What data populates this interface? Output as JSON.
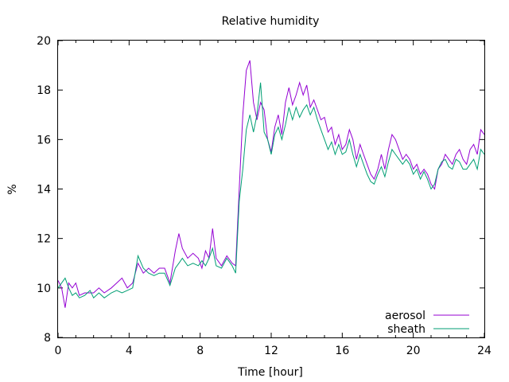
{
  "chart_data": {
    "type": "line",
    "title": "Relative humidity",
    "xlabel": "Time [hour]",
    "ylabel": "%",
    "xlim": [
      0,
      24
    ],
    "ylim": [
      8,
      20
    ],
    "xticks": [
      0,
      4,
      8,
      12,
      16,
      20,
      24
    ],
    "yticks": [
      8,
      10,
      12,
      14,
      16,
      18,
      20
    ],
    "grid": false,
    "legend_position": "bottom-right",
    "series": [
      {
        "name": "aerosol",
        "color": "#9400d3",
        "points": [
          [
            0,
            10.3
          ],
          [
            0.2,
            10.0
          ],
          [
            0.4,
            9.2
          ],
          [
            0.6,
            10.2
          ],
          [
            0.8,
            10.0
          ],
          [
            1.0,
            10.2
          ],
          [
            1.2,
            9.7
          ],
          [
            1.5,
            9.8
          ],
          [
            1.8,
            9.8
          ],
          [
            2.0,
            9.8
          ],
          [
            2.3,
            10.0
          ],
          [
            2.6,
            9.8
          ],
          [
            3.0,
            10.0
          ],
          [
            3.3,
            10.2
          ],
          [
            3.6,
            10.4
          ],
          [
            3.9,
            10.0
          ],
          [
            4.2,
            10.2
          ],
          [
            4.5,
            11.0
          ],
          [
            4.8,
            10.6
          ],
          [
            5.1,
            10.8
          ],
          [
            5.4,
            10.6
          ],
          [
            5.7,
            10.8
          ],
          [
            6.0,
            10.8
          ],
          [
            6.3,
            10.2
          ],
          [
            6.6,
            11.5
          ],
          [
            6.8,
            12.2
          ],
          [
            7.0,
            11.6
          ],
          [
            7.3,
            11.2
          ],
          [
            7.6,
            11.4
          ],
          [
            7.9,
            11.2
          ],
          [
            8.1,
            10.8
          ],
          [
            8.3,
            11.5
          ],
          [
            8.5,
            11.2
          ],
          [
            8.7,
            12.4
          ],
          [
            8.9,
            11.2
          ],
          [
            9.2,
            10.9
          ],
          [
            9.5,
            11.3
          ],
          [
            9.8,
            11.0
          ],
          [
            10.0,
            10.9
          ],
          [
            10.2,
            14.0
          ],
          [
            10.4,
            17.0
          ],
          [
            10.6,
            18.8
          ],
          [
            10.8,
            19.2
          ],
          [
            11.0,
            17.5
          ],
          [
            11.2,
            16.8
          ],
          [
            11.4,
            17.5
          ],
          [
            11.6,
            17.2
          ],
          [
            11.8,
            16.0
          ],
          [
            12.0,
            15.5
          ],
          [
            12.2,
            16.5
          ],
          [
            12.4,
            17.0
          ],
          [
            12.6,
            16.2
          ],
          [
            12.8,
            17.5
          ],
          [
            13.0,
            18.1
          ],
          [
            13.2,
            17.4
          ],
          [
            13.4,
            17.8
          ],
          [
            13.6,
            18.3
          ],
          [
            13.8,
            17.8
          ],
          [
            14.0,
            18.2
          ],
          [
            14.2,
            17.3
          ],
          [
            14.4,
            17.6
          ],
          [
            14.6,
            17.2
          ],
          [
            14.8,
            16.8
          ],
          [
            15.0,
            16.9
          ],
          [
            15.2,
            16.3
          ],
          [
            15.4,
            16.5
          ],
          [
            15.6,
            15.8
          ],
          [
            15.8,
            16.2
          ],
          [
            16.0,
            15.6
          ],
          [
            16.2,
            15.8
          ],
          [
            16.4,
            16.4
          ],
          [
            16.6,
            16.0
          ],
          [
            16.8,
            15.2
          ],
          [
            17.0,
            15.8
          ],
          [
            17.2,
            15.4
          ],
          [
            17.4,
            15.0
          ],
          [
            17.6,
            14.6
          ],
          [
            17.8,
            14.4
          ],
          [
            18.0,
            14.8
          ],
          [
            18.2,
            15.4
          ],
          [
            18.4,
            14.8
          ],
          [
            18.6,
            15.6
          ],
          [
            18.8,
            16.2
          ],
          [
            19.0,
            16.0
          ],
          [
            19.2,
            15.6
          ],
          [
            19.4,
            15.2
          ],
          [
            19.6,
            15.4
          ],
          [
            19.8,
            15.2
          ],
          [
            20.0,
            14.8
          ],
          [
            20.2,
            15.0
          ],
          [
            20.4,
            14.6
          ],
          [
            20.6,
            14.8
          ],
          [
            20.8,
            14.6
          ],
          [
            21.0,
            14.2
          ],
          [
            21.2,
            14.0
          ],
          [
            21.4,
            14.8
          ],
          [
            21.6,
            15.0
          ],
          [
            21.8,
            15.4
          ],
          [
            22.0,
            15.2
          ],
          [
            22.2,
            15.0
          ],
          [
            22.4,
            15.4
          ],
          [
            22.6,
            15.6
          ],
          [
            22.8,
            15.2
          ],
          [
            23.0,
            15.0
          ],
          [
            23.2,
            15.6
          ],
          [
            23.4,
            15.8
          ],
          [
            23.6,
            15.4
          ],
          [
            23.8,
            16.4
          ],
          [
            24.0,
            16.2
          ]
        ]
      },
      {
        "name": "sheath",
        "color": "#009e73",
        "points": [
          [
            0,
            10.0
          ],
          [
            0.2,
            10.2
          ],
          [
            0.4,
            10.4
          ],
          [
            0.6,
            10.0
          ],
          [
            0.8,
            9.7
          ],
          [
            1.0,
            9.8
          ],
          [
            1.2,
            9.6
          ],
          [
            1.5,
            9.7
          ],
          [
            1.8,
            9.9
          ],
          [
            2.0,
            9.6
          ],
          [
            2.3,
            9.8
          ],
          [
            2.6,
            9.6
          ],
          [
            3.0,
            9.8
          ],
          [
            3.3,
            9.9
          ],
          [
            3.6,
            9.8
          ],
          [
            3.9,
            9.9
          ],
          [
            4.2,
            10.0
          ],
          [
            4.5,
            11.3
          ],
          [
            4.8,
            10.8
          ],
          [
            5.1,
            10.6
          ],
          [
            5.4,
            10.5
          ],
          [
            5.7,
            10.6
          ],
          [
            6.0,
            10.6
          ],
          [
            6.3,
            10.1
          ],
          [
            6.6,
            10.8
          ],
          [
            6.8,
            11.0
          ],
          [
            7.0,
            11.2
          ],
          [
            7.3,
            10.9
          ],
          [
            7.6,
            11.0
          ],
          [
            7.9,
            10.9
          ],
          [
            8.1,
            11.1
          ],
          [
            8.3,
            10.9
          ],
          [
            8.5,
            11.2
          ],
          [
            8.7,
            11.6
          ],
          [
            8.9,
            10.9
          ],
          [
            9.2,
            10.8
          ],
          [
            9.5,
            11.2
          ],
          [
            9.8,
            10.9
          ],
          [
            10.0,
            10.6
          ],
          [
            10.2,
            13.5
          ],
          [
            10.4,
            14.8
          ],
          [
            10.6,
            16.4
          ],
          [
            10.8,
            17.0
          ],
          [
            11.0,
            16.3
          ],
          [
            11.2,
            17.0
          ],
          [
            11.4,
            18.3
          ],
          [
            11.6,
            16.3
          ],
          [
            11.8,
            16.0
          ],
          [
            12.0,
            15.4
          ],
          [
            12.2,
            16.2
          ],
          [
            12.4,
            16.5
          ],
          [
            12.6,
            16.0
          ],
          [
            12.8,
            16.6
          ],
          [
            13.0,
            17.3
          ],
          [
            13.2,
            16.8
          ],
          [
            13.4,
            17.3
          ],
          [
            13.6,
            16.9
          ],
          [
            13.8,
            17.2
          ],
          [
            14.0,
            17.4
          ],
          [
            14.2,
            17.0
          ],
          [
            14.4,
            17.3
          ],
          [
            14.6,
            16.8
          ],
          [
            14.8,
            16.4
          ],
          [
            15.0,
            16.0
          ],
          [
            15.2,
            15.6
          ],
          [
            15.4,
            15.9
          ],
          [
            15.6,
            15.4
          ],
          [
            15.8,
            15.8
          ],
          [
            16.0,
            15.4
          ],
          [
            16.2,
            15.5
          ],
          [
            16.4,
            16.0
          ],
          [
            16.6,
            15.4
          ],
          [
            16.8,
            14.9
          ],
          [
            17.0,
            15.4
          ],
          [
            17.2,
            15.0
          ],
          [
            17.4,
            14.6
          ],
          [
            17.6,
            14.3
          ],
          [
            17.8,
            14.2
          ],
          [
            18.0,
            14.6
          ],
          [
            18.2,
            14.9
          ],
          [
            18.4,
            14.5
          ],
          [
            18.6,
            15.1
          ],
          [
            18.8,
            15.6
          ],
          [
            19.0,
            15.4
          ],
          [
            19.2,
            15.2
          ],
          [
            19.4,
            15.0
          ],
          [
            19.6,
            15.2
          ],
          [
            19.8,
            15.0
          ],
          [
            20.0,
            14.6
          ],
          [
            20.2,
            14.8
          ],
          [
            20.4,
            14.4
          ],
          [
            20.6,
            14.7
          ],
          [
            20.8,
            14.4
          ],
          [
            21.0,
            14.0
          ],
          [
            21.2,
            14.2
          ],
          [
            21.4,
            14.8
          ],
          [
            21.6,
            15.1
          ],
          [
            21.8,
            15.2
          ],
          [
            22.0,
            14.9
          ],
          [
            22.2,
            14.8
          ],
          [
            22.4,
            15.2
          ],
          [
            22.6,
            15.1
          ],
          [
            22.8,
            14.8
          ],
          [
            23.0,
            14.8
          ],
          [
            23.2,
            15.0
          ],
          [
            23.4,
            15.2
          ],
          [
            23.6,
            14.8
          ],
          [
            23.8,
            15.6
          ],
          [
            24.0,
            15.4
          ]
        ]
      }
    ]
  }
}
